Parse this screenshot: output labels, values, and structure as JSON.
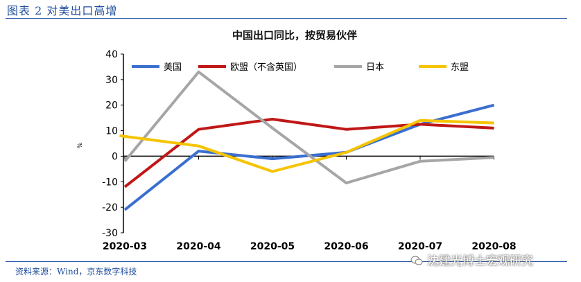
{
  "figure_title": "图表 2 对美出口高增",
  "source": "资料来源：Wind，京东数字科技",
  "watermark": "沈建光博士宏观研究",
  "colors": {
    "accent": "#1f4e9c",
    "us": "#3a6fd0",
    "eu": "#c01717",
    "japan": "#a6a6a6",
    "asean": "#f5c400"
  },
  "chart_data": {
    "type": "line",
    "title": "中国出口同比，按贸易伙伴",
    "xlabel": "",
    "ylabel": "%",
    "ylim": [
      -30,
      40
    ],
    "yticks": [
      -30,
      -20,
      -10,
      0,
      10,
      20,
      30,
      40
    ],
    "categories": [
      "2020-03",
      "2020-04",
      "2020-05",
      "2020-06",
      "2020-07",
      "2020-08"
    ],
    "x_positions": [
      0,
      1,
      2,
      3,
      4,
      5
    ],
    "series": [
      {
        "name": "美国",
        "key": "us",
        "x": [
          0,
          1,
          2,
          3,
          4,
          5
        ],
        "values": [
          -21,
          2,
          -1,
          1.5,
          12.5,
          20
        ]
      },
      {
        "name": "欧盟（不含英国）",
        "key": "eu",
        "x": [
          0,
          1,
          2,
          3,
          4,
          5
        ],
        "values": [
          -12,
          10.5,
          14.5,
          10.5,
          12.5,
          11
        ]
      },
      {
        "name": "日本",
        "key": "japan",
        "x": [
          0,
          1,
          2,
          3,
          4,
          5
        ],
        "values": [
          -2,
          33,
          11,
          -10.5,
          -2,
          -0.5
        ]
      },
      {
        "name": "东盟",
        "key": "asean",
        "x": [
          -0.07,
          1,
          2,
          3,
          4,
          5
        ],
        "values": [
          8,
          4,
          -6,
          1.5,
          14,
          13
        ]
      }
    ],
    "legend_position": "top"
  }
}
